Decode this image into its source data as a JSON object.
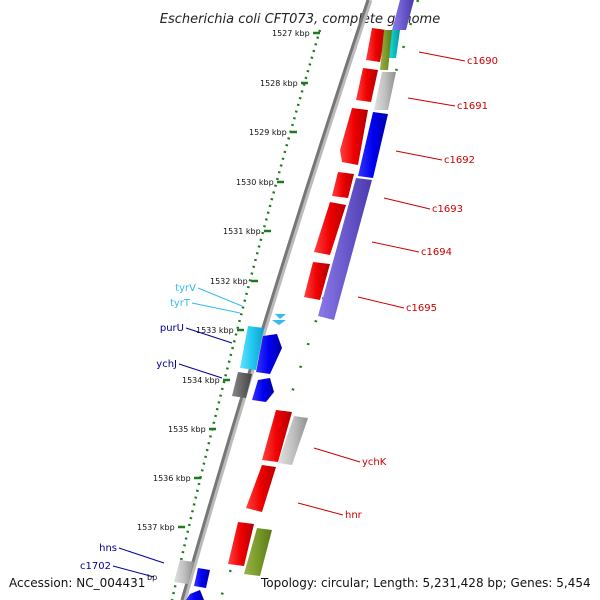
{
  "title": "Escherichia coli CFT073, complete genome",
  "footer": {
    "accession": "Accession: NC_004431",
    "summary": "Topology: circular; Length: 5,231,428 bp; Genes: 5,454"
  },
  "ruler": {
    "ticks": [
      "1527 kbp",
      "1528 kbp",
      "1529 kbp",
      "1530 kbp",
      "1531 kbp",
      "1532 kbp",
      "1533 kbp",
      "1534 kbp",
      "1535 kbp",
      "1536 kbp",
      "1537 kbp"
    ],
    "partial_unit": "bp"
  },
  "colors": {
    "red_label": "#cc0000",
    "blue_label": "#00009a",
    "cyan_label": "#33bbee",
    "backbone": "#777777",
    "tick_green": "#1f7a1f"
  },
  "genes": [
    {
      "label": "c1690",
      "color": "red"
    },
    {
      "label": "c1691",
      "color": "red"
    },
    {
      "label": "c1692",
      "color": "red"
    },
    {
      "label": "c1693",
      "color": "red"
    },
    {
      "label": "c1694",
      "color": "red"
    },
    {
      "label": "c1695",
      "color": "red"
    },
    {
      "label": "tyrV",
      "color": "cyan"
    },
    {
      "label": "tyrT",
      "color": "cyan"
    },
    {
      "label": "purU",
      "color": "blue"
    },
    {
      "label": "ychJ",
      "color": "blue"
    },
    {
      "label": "ychK",
      "color": "red"
    },
    {
      "label": "hnr",
      "color": "red"
    },
    {
      "label": "hns",
      "color": "blue"
    },
    {
      "label": "c1702",
      "color": "blue"
    }
  ]
}
